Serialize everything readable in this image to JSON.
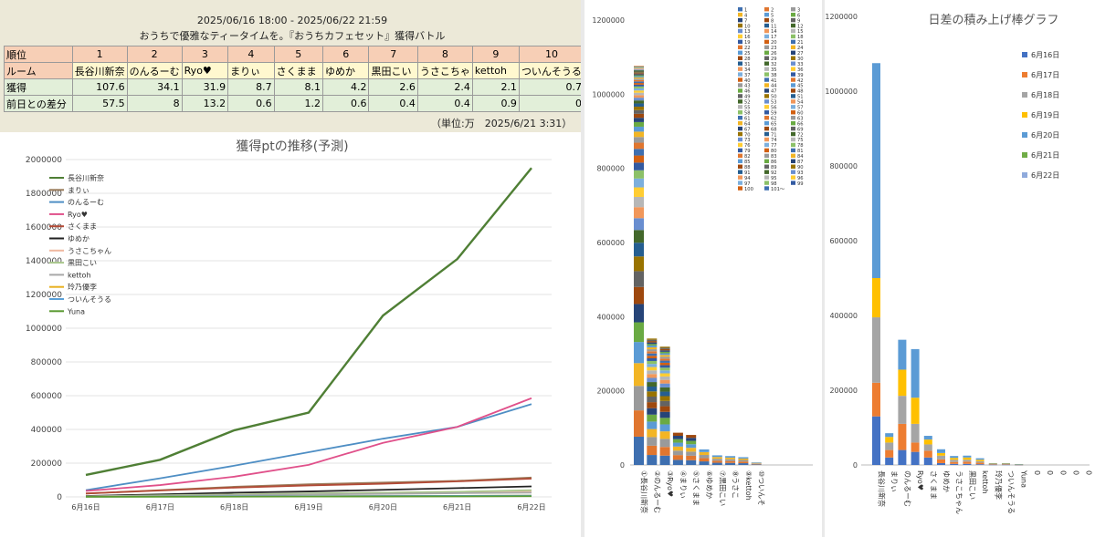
{
  "table": {
    "period": "2025/06/16 18:00 - 2025/06/22 21:59",
    "event": "おうちで優雅なティータイムを。『おうちカフェセット』獲得バトル",
    "row_labels": [
      "順位",
      "ルーム",
      "獲得",
      "前日との差分"
    ],
    "ranks": [
      "1",
      "2",
      "3",
      "4",
      "5",
      "6",
      "7",
      "8",
      "9",
      "10"
    ],
    "rooms": [
      "長谷川新奈",
      "のんるーむ",
      "Ryo♥",
      "まりぃ",
      "さくまま",
      "ゆめか",
      "黒田こい",
      "うさこちゃ",
      "kettoh",
      "ついんそうる"
    ],
    "earned": [
      "107.6",
      "34.1",
      "31.9",
      "8.7",
      "8.1",
      "4.2",
      "2.6",
      "2.4",
      "2.1",
      "0.7"
    ],
    "diff": [
      "57.5",
      "8",
      "13.2",
      "0.6",
      "1.2",
      "0.6",
      "0.4",
      "0.4",
      "0.9",
      "0"
    ],
    "unit_note": "（単位:万　2025/6/21 3:31）"
  },
  "chart_data": [
    {
      "type": "line",
      "title": "獲得ptの推移(予測)",
      "x": [
        "6月16日",
        "6月17日",
        "6月18日",
        "6月19日",
        "6月20日",
        "6月21日",
        "6月22日"
      ],
      "ylim": [
        0,
        2000000
      ],
      "yticks": [
        0,
        200000,
        400000,
        600000,
        800000,
        1000000,
        1200000,
        1400000,
        1600000,
        1800000,
        2000000
      ],
      "legend_position": "top-left",
      "series": [
        {
          "name": "長谷川新奈",
          "color": "#4f7f35",
          "values": [
            130000,
            220000,
            395000,
            500000,
            1075000,
            1410000,
            1950000
          ]
        },
        {
          "name": "まりぃ",
          "color": "#9a7b5a",
          "values": [
            20000,
            40000,
            60000,
            75000,
            85000,
            95000,
            115000
          ]
        },
        {
          "name": "のんるーむ",
          "color": "#4e8ec4",
          "values": [
            40000,
            110000,
            185000,
            265000,
            345000,
            415000,
            550000
          ]
        },
        {
          "name": "Ryo♥",
          "color": "#e0508a",
          "values": [
            35000,
            70000,
            120000,
            190000,
            320000,
            415000,
            585000
          ]
        },
        {
          "name": "さくまま",
          "color": "#b24a36",
          "values": [
            20000,
            38000,
            55000,
            68000,
            78000,
            92000,
            108000
          ]
        },
        {
          "name": "ゆめか",
          "color": "#222222",
          "values": [
            5000,
            15000,
            25000,
            32000,
            42000,
            52000,
            62000
          ]
        },
        {
          "name": "うさこちゃん",
          "color": "#f0b8a0",
          "values": [
            3000,
            8000,
            14000,
            19000,
            24000,
            30000,
            35000
          ]
        },
        {
          "name": "黒田こい",
          "color": "#a9c78c",
          "values": [
            3000,
            9000,
            14000,
            20000,
            25000,
            30000,
            40000
          ]
        },
        {
          "name": "kettoh",
          "color": "#a8a8a8",
          "values": [
            2000,
            6000,
            10000,
            14000,
            18000,
            22000,
            25000
          ]
        },
        {
          "name": "玲乃優李",
          "color": "#e8b020",
          "values": [
            1000,
            2000,
            3000,
            4000,
            5000,
            6000,
            8000
          ]
        },
        {
          "name": "ついんそうる",
          "color": "#5aa0d8",
          "values": [
            1000,
            2000,
            3000,
            4000,
            5000,
            6000,
            7000
          ]
        },
        {
          "name": "Yuna",
          "color": "#5b9a32",
          "values": [
            500,
            1000,
            1500,
            2000,
            2500,
            3000,
            4000
          ]
        }
      ]
    },
    {
      "type": "bar",
      "stacked": true,
      "ylim": [
        0,
        1200000
      ],
      "yticks": [
        0,
        200000,
        400000,
        600000,
        800000,
        1000000,
        1200000
      ],
      "categories": [
        "①長谷川新奈",
        "②のんるーむ",
        "③Ryo♥",
        "④まりぃ",
        "⑤さくまま",
        "⑥ゆめか",
        "⑦黒田こい",
        "⑧うさこ",
        "⑨kettoh",
        "⑩ついんそ"
      ],
      "totals": [
        1076000,
        341000,
        319000,
        87000,
        81000,
        42000,
        26000,
        24000,
        21000,
        7000
      ],
      "legend_labels": [
        "1",
        "2",
        "3",
        "4",
        "5",
        "6",
        "7",
        "8",
        "9",
        "10",
        "11",
        "12",
        "13",
        "14",
        "15",
        "16",
        "17",
        "18",
        "19",
        "20",
        "21",
        "22",
        "23",
        "24",
        "25",
        "26",
        "27",
        "28",
        "29",
        "30",
        "31",
        "32",
        "33",
        "34",
        "35",
        "36",
        "37",
        "38",
        "39",
        "40",
        "41",
        "42",
        "43",
        "44",
        "45",
        "46",
        "47",
        "48",
        "49",
        "50",
        "51",
        "52",
        "53",
        "54",
        "55",
        "56",
        "57",
        "58",
        "59",
        "60",
        "61",
        "62",
        "63",
        "64",
        "65",
        "66",
        "67",
        "68",
        "69",
        "70",
        "71",
        "72",
        "73",
        "74",
        "75",
        "76",
        "77",
        "78",
        "79",
        "80",
        "81",
        "82",
        "83",
        "84",
        "85",
        "86",
        "87",
        "88",
        "89",
        "90",
        "91",
        "92",
        "93",
        "94",
        "95",
        "96",
        "97",
        "98",
        "99",
        "100",
        "101〜"
      ],
      "legend_position": "top-right",
      "palette": [
        "#3e6fb0",
        "#e0762f",
        "#9a9a9a",
        "#f2b525",
        "#5b9bd5",
        "#6aaa43",
        "#264478",
        "#9e480e",
        "#636363",
        "#997300",
        "#255e91",
        "#43682b",
        "#698ed0",
        "#f1975a",
        "#b7b7b7",
        "#ffcd33",
        "#7cafdd",
        "#8cc168",
        "#335aa1",
        "#d26012"
      ]
    },
    {
      "type": "bar",
      "stacked": true,
      "title": "日差の積み上げ棒グラフ",
      "ylim": [
        0,
        1200000
      ],
      "yticks": [
        0,
        200000,
        400000,
        600000,
        800000,
        1000000,
        1200000
      ],
      "categories": [
        "長谷川新奈",
        "まりぃ",
        "のんるーむ",
        "Ryo♥",
        "さくまま",
        "ゆめか",
        "うさこちゃん",
        "黒田こい",
        "kettoh",
        "玲乃優李",
        "ついんそうる",
        "Yuna",
        "0",
        "0",
        "0",
        "0",
        "0"
      ],
      "legend_position": "right",
      "series": [
        {
          "name": "6月16日",
          "color": "#4472c4",
          "values": [
            130000,
            20000,
            40000,
            35000,
            20000,
            5000,
            3000,
            3000,
            2000,
            1000,
            1000,
            500,
            0,
            0,
            0,
            0,
            0
          ]
        },
        {
          "name": "6月17日",
          "color": "#ed7d31",
          "values": [
            90000,
            20000,
            70000,
            25000,
            18000,
            10000,
            5000,
            6000,
            4000,
            1000,
            1000,
            500,
            0,
            0,
            0,
            0,
            0
          ]
        },
        {
          "name": "6月18日",
          "color": "#a5a5a5",
          "values": [
            175000,
            20000,
            75000,
            50000,
            17000,
            10000,
            6000,
            5000,
            4000,
            1000,
            1000,
            500,
            0,
            0,
            0,
            0,
            0
          ]
        },
        {
          "name": "6月19日",
          "color": "#ffc000",
          "values": [
            105000,
            15000,
            70000,
            70000,
            13000,
            7000,
            5000,
            6000,
            4000,
            1000,
            1000,
            500,
            0,
            0,
            0,
            0,
            0
          ]
        },
        {
          "name": "6月20日",
          "color": "#5b9bd5",
          "values": [
            575000,
            10000,
            80000,
            130000,
            10000,
            10000,
            5000,
            5000,
            4000,
            1000,
            1000,
            500,
            0,
            0,
            0,
            0,
            0
          ]
        },
        {
          "name": "6月21日",
          "color": "#70ad47",
          "values": [
            0,
            0,
            0,
            0,
            0,
            0,
            0,
            0,
            0,
            0,
            0,
            0,
            0,
            0,
            0,
            0,
            0
          ]
        },
        {
          "name": "6月22日",
          "color": "#8faadc",
          "values": [
            0,
            0,
            0,
            0,
            0,
            0,
            0,
            0,
            0,
            0,
            0,
            0,
            0,
            0,
            0,
            0,
            0
          ]
        }
      ]
    }
  ]
}
